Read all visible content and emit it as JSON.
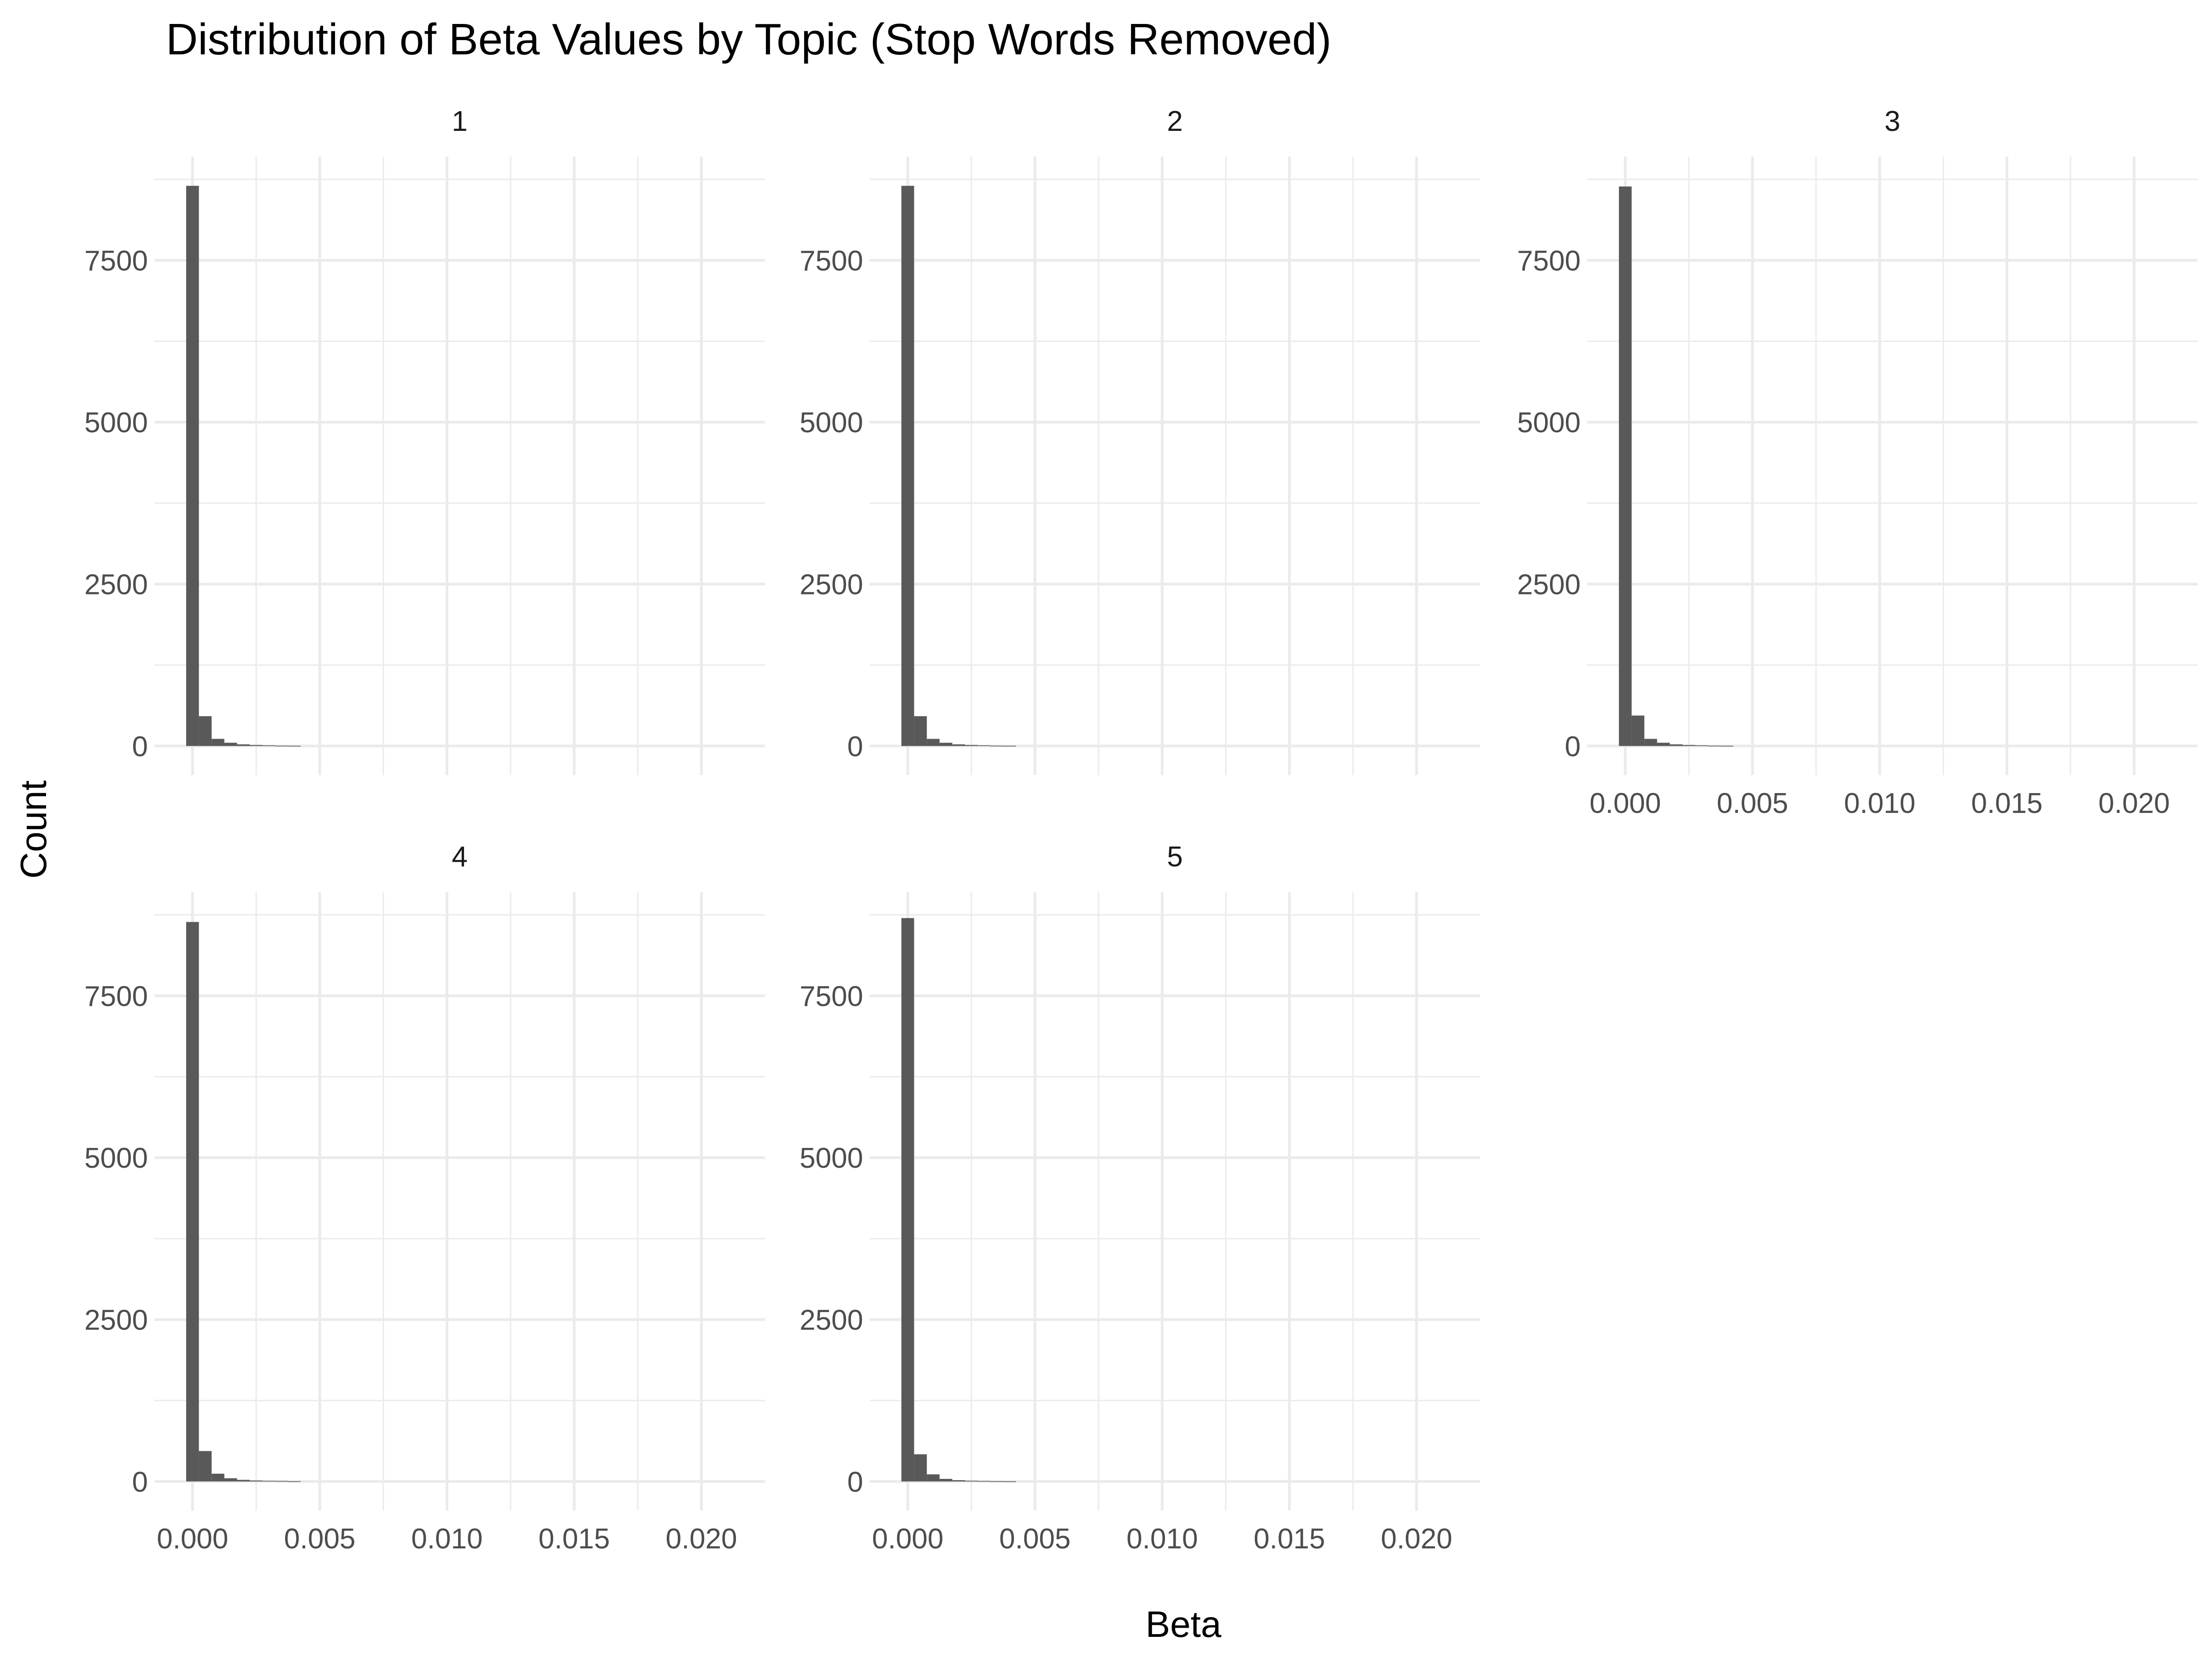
{
  "chart_data": {
    "type": "bar",
    "title": "Distribution of Beta Values by Topic (Stop Words Removed)",
    "xlabel": "Beta",
    "ylabel": "Count",
    "xlim": [
      -0.0015,
      0.0225
    ],
    "ylim": [
      -450,
      9100
    ],
    "x_ticks": [
      "0.000",
      "0.005",
      "0.010",
      "0.015",
      "0.020"
    ],
    "x_tick_values": [
      0,
      0.005,
      0.01,
      0.015,
      0.02
    ],
    "y_ticks": [
      "0",
      "2500",
      "5000",
      "7500"
    ],
    "y_tick_values": [
      0,
      2500,
      5000,
      7500
    ],
    "grid": true,
    "bin_width": 0.0005,
    "bin_centers": [
      0,
      0.0005,
      0.001,
      0.0015,
      0.002,
      0.0025,
      0.003,
      0.0035,
      0.004
    ],
    "facets": [
      {
        "label": "1",
        "x_tick_labels_shown": false,
        "values": [
          8650,
          460,
          110,
          50,
          25,
          15,
          10,
          5,
          3
        ]
      },
      {
        "label": "2",
        "x_tick_labels_shown": false,
        "values": [
          8650,
          460,
          110,
          50,
          25,
          15,
          10,
          5,
          3
        ]
      },
      {
        "label": "3",
        "x_tick_labels_shown": true,
        "values": [
          8640,
          470,
          110,
          50,
          25,
          15,
          10,
          5,
          3
        ]
      },
      {
        "label": "4",
        "x_tick_labels_shown": true,
        "values": [
          8640,
          470,
          120,
          50,
          25,
          15,
          10,
          8,
          4
        ]
      },
      {
        "label": "5",
        "x_tick_labels_shown": true,
        "values": [
          8700,
          420,
          110,
          40,
          20,
          12,
          8,
          5,
          3
        ]
      }
    ]
  }
}
